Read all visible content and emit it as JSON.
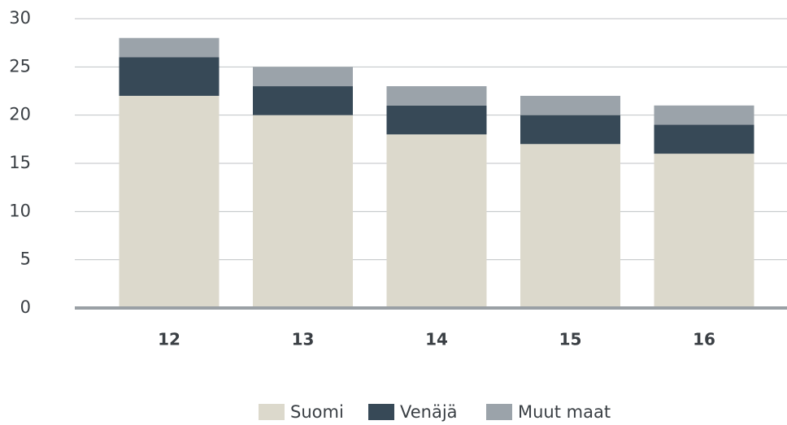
{
  "chart_data": {
    "type": "stacked_bar",
    "categories": [
      "12",
      "13",
      "14",
      "15",
      "16"
    ],
    "series": [
      {
        "name": "Suomi",
        "color": "#dcd9cc",
        "values": [
          22,
          20,
          18,
          17,
          16
        ]
      },
      {
        "name": "Venäjä",
        "color": "#374957",
        "values": [
          4,
          3,
          3,
          3,
          3
        ]
      },
      {
        "name": "Muut maat",
        "color": "#9ba3aa",
        "values": [
          2,
          2,
          2,
          2,
          2
        ]
      }
    ],
    "ylim": [
      0,
      30
    ],
    "yticks": [
      0,
      5,
      10,
      15,
      20,
      25,
      30
    ],
    "grid": true,
    "legend": "bottom"
  }
}
